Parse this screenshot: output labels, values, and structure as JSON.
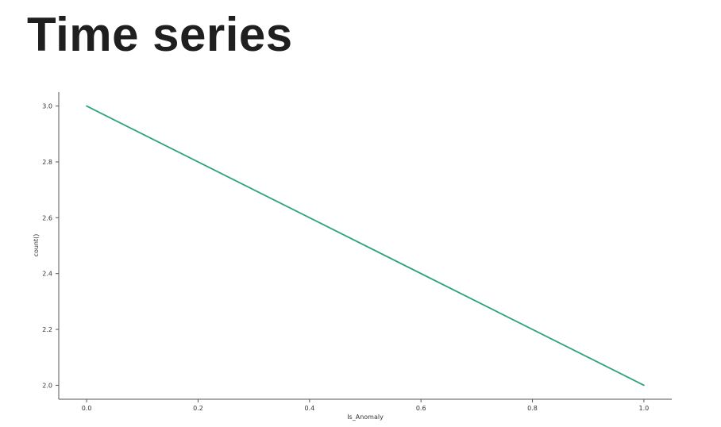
{
  "page": {
    "title": "Time series"
  },
  "chart_data": {
    "type": "line",
    "xlabel": "Is_Anomaly",
    "ylabel": "count()",
    "x": [
      0.0,
      1.0
    ],
    "series": [
      {
        "values": [
          3.0,
          2.0
        ]
      }
    ],
    "xlim": [
      -0.05,
      1.05
    ],
    "ylim": [
      1.95,
      3.05
    ],
    "xticks": [
      0.0,
      0.2,
      0.4,
      0.6,
      0.8,
      1.0
    ],
    "xtick_labels": [
      "0.0",
      "0.2",
      "0.4",
      "0.6",
      "0.8",
      "1.0"
    ],
    "yticks": [
      2.0,
      2.2,
      2.4,
      2.6,
      2.8,
      3.0
    ],
    "ytick_labels": [
      "2.0",
      "2.2",
      "2.4",
      "2.6",
      "2.8",
      "3.0"
    ],
    "grid": false,
    "line_color": "#2ca37a",
    "axis_color": "#555555"
  }
}
